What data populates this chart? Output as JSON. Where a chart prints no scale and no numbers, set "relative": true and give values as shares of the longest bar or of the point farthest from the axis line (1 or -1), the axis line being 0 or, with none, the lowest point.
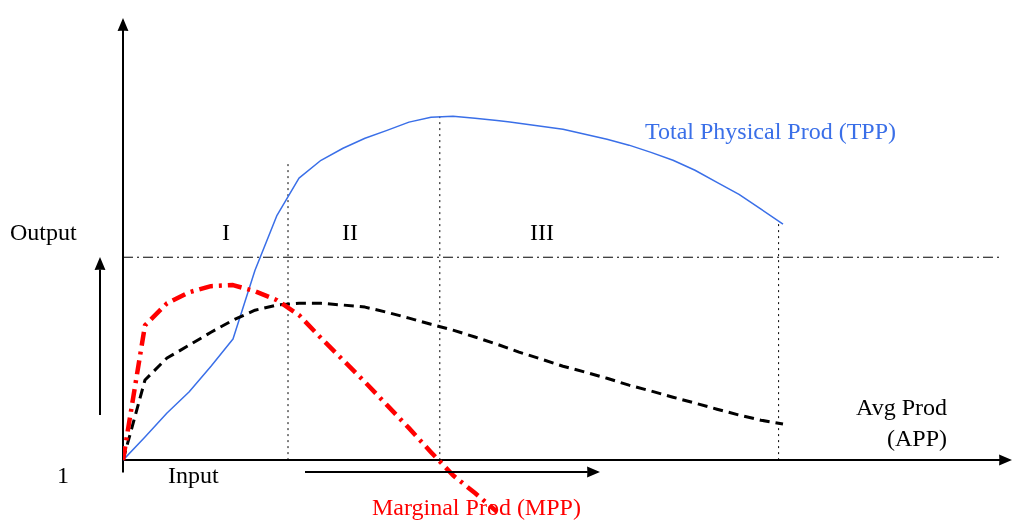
{
  "chart_data": {
    "type": "line",
    "relative": true,
    "tick_labels": false,
    "categories": [
      null,
      null,
      null,
      null,
      null,
      null,
      null,
      null,
      null,
      null,
      null,
      null,
      null,
      null,
      null,
      null,
      null,
      null,
      null,
      null,
      null,
      null,
      null,
      null,
      null,
      null,
      null,
      null,
      null,
      null,
      null,
      null,
      null,
      null,
      null,
      null,
      null,
      null,
      null,
      null,
      null
    ],
    "series": [
      {
        "name": "Total Physical Prod (TPP)",
        "color": "#3a6fe8",
        "line_style": "solid",
        "values": [
          0,
          0.067,
          0.137,
          0.198,
          0.273,
          0.352,
          0.552,
          0.712,
          0.82,
          0.872,
          0.907,
          0.936,
          0.959,
          0.983,
          0.997,
          1,
          0.994,
          0.988,
          0.98,
          0.971,
          0.962,
          0.948,
          0.933,
          0.916,
          0.895,
          0.872,
          0.843,
          0.808,
          0.773,
          0.73,
          0.686,
          null,
          null,
          null,
          null,
          null,
          null,
          null,
          null,
          null,
          null
        ]
      },
      {
        "name": "Avg Prod (APP)",
        "color": "#000000",
        "line_style": "dashed",
        "values": [
          0,
          0.233,
          0.297,
          0.334,
          0.372,
          0.407,
          0.436,
          0.451,
          0.456,
          0.456,
          0.451,
          0.445,
          0.43,
          0.413,
          0.395,
          0.378,
          0.358,
          0.337,
          0.314,
          0.294,
          0.273,
          0.256,
          0.238,
          0.218,
          0.201,
          0.183,
          0.166,
          0.148,
          0.131,
          0.116,
          0.105,
          null,
          null,
          null,
          null,
          null,
          null,
          null,
          null,
          null,
          null
        ]
      },
      {
        "name": "Marginal Prod (MPP)",
        "color": "#ff0000",
        "line_style": "dashed",
        "values": [
          0,
          0.392,
          0.456,
          0.488,
          0.506,
          0.509,
          0.491,
          0.465,
          0.422,
          0.355,
          0.291,
          0.227,
          0.16,
          0.093,
          0.023,
          -0.044,
          -0.096,
          -0.15,
          null,
          null,
          null,
          null,
          null,
          null,
          null,
          null,
          null,
          null,
          null,
          null,
          null,
          null,
          null,
          null,
          null,
          null,
          null,
          null,
          null,
          null,
          null
        ]
      }
    ],
    "ref_lines": [
      {
        "axis": "y",
        "value": 0.59,
        "line_style": "dashed",
        "color": "#000000"
      }
    ],
    "annotations": [
      "Output",
      "Input",
      "1",
      "I",
      "II",
      "III"
    ]
  }
}
